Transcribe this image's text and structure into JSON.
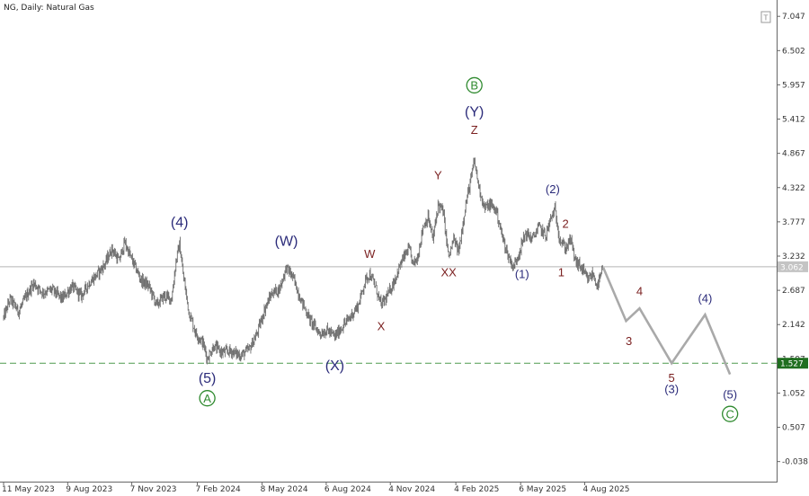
{
  "title": "NG, Daily:  Natural Gas",
  "colors": {
    "price": "#6e6e6e",
    "forecast": "#a9a9a9",
    "wave_blue": "#2b2b7a",
    "wave_red": "#7a1f1f",
    "wave_green": "#2f8a2f",
    "current_line": "#b4b4b4",
    "support_line": "#4f9a4f",
    "support_tag": "#1f6e1f"
  },
  "icons": {
    "corner": "info-icon"
  },
  "chart_data": {
    "type": "line",
    "y_range": [
      -0.3,
      7.25
    ],
    "y_ticks": [
      "7.047",
      "6.502",
      "5.957",
      "5.412",
      "4.867",
      "4.322",
      "3.777",
      "3.232",
      "2.687",
      "2.142",
      "1.597",
      "1.052",
      "0.507",
      "-0.038"
    ],
    "x_ticks": [
      "11 May 2023",
      "9 Aug 2023",
      "7 Nov 2023",
      "7 Feb 2024",
      "8 May 2024",
      "6 Aug 2024",
      "4 Nov 2024",
      "4 Feb 2025",
      "6 May 2025",
      "4 Aug 2025"
    ],
    "current_price": {
      "label": "3.062",
      "value": 3.062
    },
    "support_level": {
      "label": "1.527",
      "value": 1.527
    },
    "series": [
      {
        "values": [
          [
            "2023-05-11",
            2.25
          ],
          [
            "2023-05-20",
            2.55
          ],
          [
            "2023-06-01",
            2.35
          ],
          [
            "2023-06-12",
            2.6
          ],
          [
            "2023-06-22",
            2.8
          ],
          [
            "2023-07-05",
            2.65
          ],
          [
            "2023-07-18",
            2.7
          ],
          [
            "2023-08-01",
            2.55
          ],
          [
            "2023-08-15",
            2.75
          ],
          [
            "2023-08-28",
            2.6
          ],
          [
            "2023-09-08",
            2.8
          ],
          [
            "2023-09-20",
            2.95
          ],
          [
            "2023-09-30",
            3.1
          ],
          [
            "2023-10-10",
            3.35
          ],
          [
            "2023-10-20",
            3.15
          ],
          [
            "2023-10-28",
            3.45
          ],
          [
            "2023-11-06",
            3.2
          ],
          [
            "2023-11-20",
            2.85
          ],
          [
            "2023-12-01",
            2.75
          ],
          [
            "2023-12-12",
            2.45
          ],
          [
            "2023-12-22",
            2.6
          ],
          [
            "2024-01-02",
            2.55
          ],
          [
            "2024-01-08",
            3.15
          ],
          [
            "2024-01-13",
            3.42
          ],
          [
            "2024-01-18",
            2.95
          ],
          [
            "2024-01-26",
            2.35
          ],
          [
            "2024-02-05",
            2.0
          ],
          [
            "2024-02-15",
            1.85
          ],
          [
            "2024-02-21",
            1.6
          ],
          [
            "2024-03-01",
            1.8
          ],
          [
            "2024-03-12",
            1.7
          ],
          [
            "2024-03-25",
            1.72
          ],
          [
            "2024-04-08",
            1.65
          ],
          [
            "2024-04-20",
            1.75
          ],
          [
            "2024-05-01",
            2.0
          ],
          [
            "2024-05-12",
            2.4
          ],
          [
            "2024-05-22",
            2.65
          ],
          [
            "2024-06-01",
            2.7
          ],
          [
            "2024-06-11",
            3.05
          ],
          [
            "2024-06-20",
            2.9
          ],
          [
            "2024-07-01",
            2.55
          ],
          [
            "2024-07-15",
            2.2
          ],
          [
            "2024-07-28",
            2.0
          ],
          [
            "2024-08-08",
            2.05
          ],
          [
            "2024-08-18",
            1.95
          ],
          [
            "2024-08-28",
            2.1
          ],
          [
            "2024-09-08",
            2.25
          ],
          [
            "2024-09-20",
            2.45
          ],
          [
            "2024-09-30",
            2.85
          ],
          [
            "2024-10-06",
            2.95
          ],
          [
            "2024-10-14",
            2.75
          ],
          [
            "2024-10-22",
            2.45
          ],
          [
            "2024-10-31",
            2.6
          ],
          [
            "2024-11-10",
            2.85
          ],
          [
            "2024-11-20",
            3.15
          ],
          [
            "2024-11-30",
            3.35
          ],
          [
            "2024-12-06",
            3.1
          ],
          [
            "2024-12-12",
            3.2
          ],
          [
            "2024-12-20",
            3.7
          ],
          [
            "2024-12-27",
            3.85
          ],
          [
            "2025-01-03",
            3.5
          ],
          [
            "2025-01-10",
            4.05
          ],
          [
            "2025-01-17",
            3.95
          ],
          [
            "2025-01-25",
            3.2
          ],
          [
            "2025-02-01",
            3.5
          ],
          [
            "2025-02-08",
            3.3
          ],
          [
            "2025-02-17",
            4.0
          ],
          [
            "2025-02-25",
            4.45
          ],
          [
            "2025-03-02",
            4.75
          ],
          [
            "2025-03-08",
            4.35
          ],
          [
            "2025-03-16",
            4.0
          ],
          [
            "2025-03-25",
            4.05
          ],
          [
            "2025-04-02",
            3.95
          ],
          [
            "2025-04-10",
            3.55
          ],
          [
            "2025-04-18",
            3.25
          ],
          [
            "2025-04-26",
            3.05
          ],
          [
            "2025-05-04",
            3.3
          ],
          [
            "2025-05-13",
            3.6
          ],
          [
            "2025-05-22",
            3.5
          ],
          [
            "2025-06-01",
            3.7
          ],
          [
            "2025-06-10",
            3.55
          ],
          [
            "2025-06-18",
            3.85
          ],
          [
            "2025-06-23",
            3.97
          ],
          [
            "2025-06-30",
            3.5
          ],
          [
            "2025-07-08",
            3.35
          ],
          [
            "2025-07-15",
            3.5
          ],
          [
            "2025-07-22",
            3.15
          ],
          [
            "2025-07-30",
            3.05
          ],
          [
            "2025-08-08",
            2.85
          ],
          [
            "2025-08-15",
            2.95
          ],
          [
            "2025-08-22",
            2.75
          ],
          [
            "2025-08-30",
            3.05
          ]
        ]
      },
      {
        "values": [
          [
            "2025-08-30",
            3.05
          ],
          [
            "2025-10-01",
            2.2
          ],
          [
            "2025-10-20",
            2.4
          ],
          [
            "2025-12-04",
            1.527
          ],
          [
            "2026-01-20",
            2.3
          ],
          [
            "2026-02-24",
            1.35
          ]
        ]
      }
    ],
    "annotations": [
      {
        "text": "(4)",
        "color": "blue",
        "x": "2024-01-13",
        "y": 3.78
      },
      {
        "text": "(5)",
        "color": "blue",
        "x": "2024-02-21",
        "y": 1.3
      },
      {
        "text": "A",
        "color": "green",
        "circled": true,
        "x": "2024-02-21",
        "y": 0.97
      },
      {
        "text": "(W)",
        "color": "blue",
        "x": "2024-06-11",
        "y": 3.48
      },
      {
        "text": "(X)",
        "color": "blue",
        "x": "2024-08-18",
        "y": 1.5
      },
      {
        "text": "W",
        "color": "red",
        "x": "2024-10-06",
        "y": 3.27
      },
      {
        "text": "X",
        "color": "red",
        "x": "2024-10-22",
        "y": 2.12
      },
      {
        "text": "Y",
        "color": "red",
        "x": "2025-01-10",
        "y": 4.52
      },
      {
        "text": "XX",
        "color": "red",
        "x": "2025-01-25",
        "y": 2.98
      },
      {
        "text": "Z",
        "color": "red",
        "x": "2025-03-02",
        "y": 5.24
      },
      {
        "text": "(Y)",
        "color": "blue",
        "x": "2025-03-02",
        "y": 5.54
      },
      {
        "text": "B",
        "color": "green",
        "circled": true,
        "x": "2025-03-02",
        "y": 5.95
      },
      {
        "text": "(1)",
        "color": "blue",
        "x": "2025-05-08",
        "y": 2.95
      },
      {
        "text": "(2)",
        "color": "blue",
        "x": "2025-06-20",
        "y": 4.3
      },
      {
        "text": "2",
        "color": "red",
        "x": "2025-07-08",
        "y": 3.75
      },
      {
        "text": "1",
        "color": "red",
        "x": "2025-07-02",
        "y": 2.98
      },
      {
        "text": "3",
        "color": "red",
        "x": "2025-10-05",
        "y": 1.88
      },
      {
        "text": "4",
        "color": "red",
        "x": "2025-10-20",
        "y": 2.68
      },
      {
        "text": "5",
        "color": "red",
        "x": "2025-12-04",
        "y": 1.3
      },
      {
        "text": "(3)",
        "color": "blue",
        "x": "2025-12-04",
        "y": 1.12
      },
      {
        "text": "(4)",
        "color": "blue",
        "x": "2026-01-20",
        "y": 2.56
      },
      {
        "text": "(5)",
        "color": "blue",
        "x": "2026-02-24",
        "y": 1.03
      },
      {
        "text": "C",
        "color": "green",
        "circled": true,
        "x": "2026-02-24",
        "y": 0.72
      }
    ]
  }
}
